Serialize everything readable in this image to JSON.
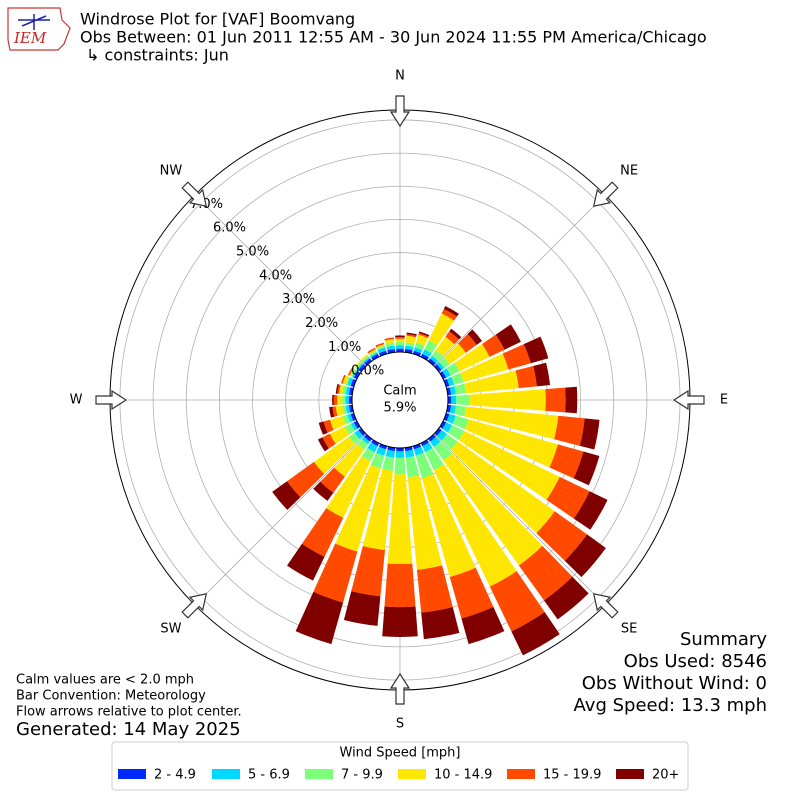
{
  "logo_text": "IEM",
  "title_lines": [
    "Windrose Plot for [VAF] Boomvang",
    "Obs Between: 01 Jun 2011 12:55 AM - 30 Jun 2024 11:55 PM America/Chicago",
    "↳ constraints: Jun"
  ],
  "summary": [
    "Summary",
    "Obs Used: 8546",
    "Obs Without Wind: 0",
    "Avg Speed: 13.3 mph"
  ],
  "notes": [
    "Calm values are < 2.0 mph",
    "Bar Convention: Meteorology",
    "Flow arrows relative to plot center."
  ],
  "generated": "Generated: 14 May 2025",
  "chart_data": {
    "type": "windrose",
    "calm_label": "Calm",
    "calm": 5.9,
    "calm_value_label": "5.9%",
    "x": [
      0,
      10,
      20,
      30,
      40,
      50,
      60,
      70,
      80,
      90,
      100,
      110,
      120,
      130,
      140,
      150,
      160,
      170,
      180,
      190,
      200,
      210,
      220,
      230,
      240,
      250,
      260,
      270,
      280,
      290,
      300,
      310,
      320,
      330,
      340,
      350
    ],
    "xticks": [
      {
        "value": 0,
        "label": "N"
      },
      {
        "value": 45,
        "label": "NE"
      },
      {
        "value": 90,
        "label": "E"
      },
      {
        "value": 135,
        "label": "SE"
      },
      {
        "value": 180,
        "label": "S"
      },
      {
        "value": 225,
        "label": "SW"
      },
      {
        "value": 270,
        "label": "W"
      },
      {
        "value": 315,
        "label": "NW"
      }
    ],
    "ylim": [
      0,
      7.3
    ],
    "yticks": [
      {
        "value": 0,
        "label": "0.0%"
      },
      {
        "value": 1,
        "label": "1.0%"
      },
      {
        "value": 2,
        "label": "2.0%"
      },
      {
        "value": 3,
        "label": "3.0%"
      },
      {
        "value": 4,
        "label": "4.0%"
      },
      {
        "value": 5,
        "label": "5.0%"
      },
      {
        "value": 6,
        "label": "6.0%"
      },
      {
        "value": 7,
        "label": "7.0%"
      }
    ],
    "grid": true,
    "legend_title": "Wind Speed [mph]",
    "legend_position": "bottom",
    "series": [
      {
        "name": "2 - 4.9",
        "color": "#0028ff",
        "values": [
          0.1,
          0.1,
          0.1,
          0.1,
          0.1,
          0.1,
          0.1,
          0.1,
          0.1,
          0.1,
          0.1,
          0.1,
          0.1,
          0.1,
          0.1,
          0.1,
          0.1,
          0.1,
          0.1,
          0.1,
          0.1,
          0.1,
          0.1,
          0.1,
          0.1,
          0.1,
          0.1,
          0.1,
          0.1,
          0.1,
          0.1,
          0.1,
          0.1,
          0.1,
          0.1,
          0.1
        ]
      },
      {
        "name": "5 - 6.9",
        "color": "#00d8ff",
        "values": [
          0.1,
          0.1,
          0.1,
          0.15,
          0.1,
          0.1,
          0.15,
          0.15,
          0.15,
          0.15,
          0.15,
          0.2,
          0.2,
          0.2,
          0.2,
          0.2,
          0.2,
          0.2,
          0.2,
          0.2,
          0.2,
          0.2,
          0.1,
          0.15,
          0.1,
          0.1,
          0.1,
          0.1,
          0.1,
          0.1,
          0.05,
          0.05,
          0.05,
          0.05,
          0.1,
          0.1
        ]
      },
      {
        "name": "7 - 9.9",
        "color": "#7cff7a",
        "values": [
          0.1,
          0.1,
          0.15,
          0.3,
          0.2,
          0.2,
          0.3,
          0.3,
          0.3,
          0.4,
          0.3,
          0.4,
          0.4,
          0.4,
          0.5,
          0.6,
          0.7,
          0.6,
          0.5,
          0.4,
          0.4,
          0.3,
          0.2,
          0.2,
          0.2,
          0.15,
          0.1,
          0.1,
          0.1,
          0.05,
          0.05,
          0.05,
          0.05,
          0.05,
          0.05,
          0.1
        ]
      },
      {
        "name": "10 - 14.9",
        "color": "#ffe600",
        "values": [
          0.1,
          0.2,
          0.25,
          0.9,
          0.5,
          0.6,
          1.0,
          1.4,
          1.6,
          2.3,
          2.8,
          2.8,
          3.2,
          3.6,
          3.9,
          3.9,
          3.1,
          2.8,
          2.7,
          2.4,
          2.6,
          1.9,
          1.0,
          1.3,
          0.5,
          0.4,
          0.2,
          0.15,
          0.1,
          0.1,
          0.05,
          0.05,
          0.05,
          0.05,
          0.05,
          0.1
        ]
      },
      {
        "name": "15 - 19.9",
        "color": "#ff4a00",
        "values": [
          0.05,
          0.05,
          0.05,
          0.15,
          0.2,
          0.4,
          0.5,
          0.7,
          0.55,
          0.6,
          0.8,
          0.8,
          1.0,
          1.2,
          1.3,
          1.5,
          1.3,
          1.3,
          1.3,
          1.4,
          1.6,
          1.3,
          0.6,
          1.0,
          0.25,
          0.2,
          0.1,
          0.1,
          0.05,
          0.05,
          0.05,
          0,
          0,
          0.05,
          0.05,
          0.05
        ]
      },
      {
        "name": "20+",
        "color": "#800000",
        "values": [
          0.05,
          0.05,
          0.05,
          0.1,
          0.1,
          0.2,
          0.55,
          0.55,
          0.4,
          0.35,
          0.45,
          0.5,
          0.6,
          0.7,
          0.7,
          0.8,
          0.8,
          0.8,
          0.9,
          0.9,
          1.3,
          0.8,
          0.3,
          0.55,
          0.15,
          0.15,
          0.1,
          0.05,
          0.05,
          0,
          0,
          0,
          0,
          0,
          0,
          0
        ]
      }
    ]
  }
}
